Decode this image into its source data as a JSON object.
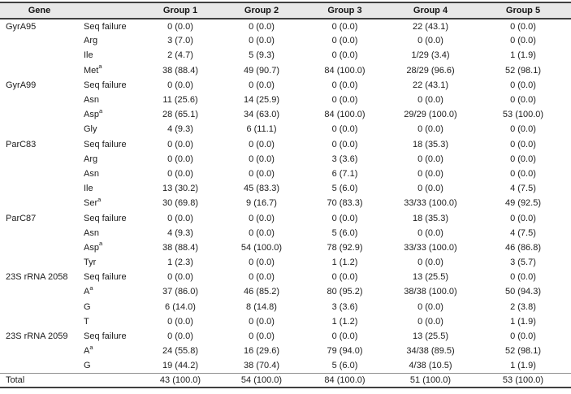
{
  "colors": {
    "header_bg": "#e8e8e8",
    "rule_dark": "#404040",
    "rule_light": "#8f8f8f",
    "text": "#1c1c1c",
    "bg": "#ffffff"
  },
  "table": {
    "headers": {
      "gene": "Gene",
      "variant": "",
      "groups": [
        "Group 1",
        "Group 2",
        "Group 3",
        "Group 4",
        "Group 5"
      ]
    },
    "rows": [
      {
        "gene": "GyrA95",
        "variant": "Seq failure",
        "sup": "",
        "values": [
          "0 (0.0)",
          "0 (0.0)",
          "0 (0.0)",
          "22 (43.1)",
          "0 (0.0)"
        ]
      },
      {
        "gene": "",
        "variant": "Arg",
        "sup": "",
        "values": [
          "3 (7.0)",
          "0 (0.0)",
          "0 (0.0)",
          "0 (0.0)",
          "0 (0.0)"
        ]
      },
      {
        "gene": "",
        "variant": "Ile",
        "sup": "",
        "values": [
          "2 (4.7)",
          "5 (9.3)",
          "0 (0.0)",
          "1/29 (3.4)",
          "1 (1.9)"
        ]
      },
      {
        "gene": "",
        "variant": "Met",
        "sup": "a",
        "values": [
          "38 (88.4)",
          "49 (90.7)",
          "84 (100.0)",
          "28/29 (96.6)",
          "52 (98.1)"
        ]
      },
      {
        "gene": "GyrA99",
        "variant": "Seq failure",
        "sup": "",
        "values": [
          "0 (0.0)",
          "0 (0.0)",
          "0 (0.0)",
          "22 (43.1)",
          "0 (0.0)"
        ]
      },
      {
        "gene": "",
        "variant": "Asn",
        "sup": "",
        "values": [
          "11 (25.6)",
          "14 (25.9)",
          "0 (0.0)",
          "0 (0.0)",
          "0 (0.0)"
        ]
      },
      {
        "gene": "",
        "variant": "Asp",
        "sup": "a",
        "values": [
          "28 (65.1)",
          "34 (63.0)",
          "84 (100.0)",
          "29/29 (100.0)",
          "53 (100.0)"
        ]
      },
      {
        "gene": "",
        "variant": "Gly",
        "sup": "",
        "values": [
          "4 (9.3)",
          "6 (11.1)",
          "0 (0.0)",
          "0 (0.0)",
          "0 (0.0)"
        ]
      },
      {
        "gene": "ParC83",
        "variant": "Seq failure",
        "sup": "",
        "values": [
          "0 (0.0)",
          "0 (0.0)",
          "0 (0.0)",
          "18 (35.3)",
          "0 (0.0)"
        ]
      },
      {
        "gene": "",
        "variant": "Arg",
        "sup": "",
        "values": [
          "0 (0.0)",
          "0 (0.0)",
          "3 (3.6)",
          "0 (0.0)",
          "0 (0.0)"
        ]
      },
      {
        "gene": "",
        "variant": "Asn",
        "sup": "",
        "values": [
          "0 (0.0)",
          "0 (0.0)",
          "6 (7.1)",
          "0 (0.0)",
          "0 (0.0)"
        ]
      },
      {
        "gene": "",
        "variant": "Ile",
        "sup": "",
        "values": [
          "13 (30.2)",
          "45 (83.3)",
          "5 (6.0)",
          "0 (0.0)",
          "4 (7.5)"
        ]
      },
      {
        "gene": "",
        "variant": "Ser",
        "sup": "a",
        "values": [
          "30 (69.8)",
          "9 (16.7)",
          "70 (83.3)",
          "33/33 (100.0)",
          "49 (92.5)"
        ]
      },
      {
        "gene": "ParC87",
        "variant": "Seq failure",
        "sup": "",
        "values": [
          "0 (0.0)",
          "0 (0.0)",
          "0 (0.0)",
          "18 (35.3)",
          "0 (0.0)"
        ]
      },
      {
        "gene": "",
        "variant": "Asn",
        "sup": "",
        "values": [
          "4 (9.3)",
          "0 (0.0)",
          "5 (6.0)",
          "0 (0.0)",
          "4 (7.5)"
        ]
      },
      {
        "gene": "",
        "variant": "Asp",
        "sup": "a",
        "values": [
          "38 (88.4)",
          "54 (100.0)",
          "78 (92.9)",
          "33/33 (100.0)",
          "46 (86.8)"
        ]
      },
      {
        "gene": "",
        "variant": "Tyr",
        "sup": "",
        "values": [
          "1 (2.3)",
          "0 (0.0)",
          "1 (1.2)",
          "0 (0.0)",
          "3 (5.7)"
        ]
      },
      {
        "gene": "23S rRNA 2058",
        "variant": "Seq failure",
        "sup": "",
        "values": [
          "0 (0.0)",
          "0 (0.0)",
          "0 (0.0)",
          "13 (25.5)",
          "0 (0.0)"
        ]
      },
      {
        "gene": "",
        "variant": "A",
        "sup": "a",
        "values": [
          "37 (86.0)",
          "46 (85.2)",
          "80 (95.2)",
          "38/38 (100.0)",
          "50 (94.3)"
        ]
      },
      {
        "gene": "",
        "variant": "G",
        "sup": "",
        "values": [
          "6 (14.0)",
          "8 (14.8)",
          "3 (3.6)",
          "0 (0.0)",
          "2 (3.8)"
        ]
      },
      {
        "gene": "",
        "variant": "T",
        "sup": "",
        "values": [
          "0 (0.0)",
          "0 (0.0)",
          "1 (1.2)",
          "0 (0.0)",
          "1 (1.9)"
        ]
      },
      {
        "gene": "23S rRNA 2059",
        "variant": "Seq failure",
        "sup": "",
        "values": [
          "0 (0.0)",
          "0 (0.0)",
          "0 (0.0)",
          "13 (25.5)",
          "0 (0.0)"
        ]
      },
      {
        "gene": "",
        "variant": "A",
        "sup": "a",
        "values": [
          "24 (55.8)",
          "16 (29.6)",
          "79 (94.0)",
          "34/38 (89.5)",
          "52 (98.1)"
        ]
      },
      {
        "gene": "",
        "variant": "G",
        "sup": "",
        "values": [
          "19 (44.2)",
          "38 (70.4)",
          "5 (6.0)",
          "4/38 (10.5)",
          "1 (1.9)"
        ]
      }
    ],
    "total": {
      "label": "Total",
      "values": [
        "43 (100.0)",
        "54 (100.0)",
        "84 (100.0)",
        "51 (100.0)",
        "53 (100.0)"
      ]
    }
  }
}
